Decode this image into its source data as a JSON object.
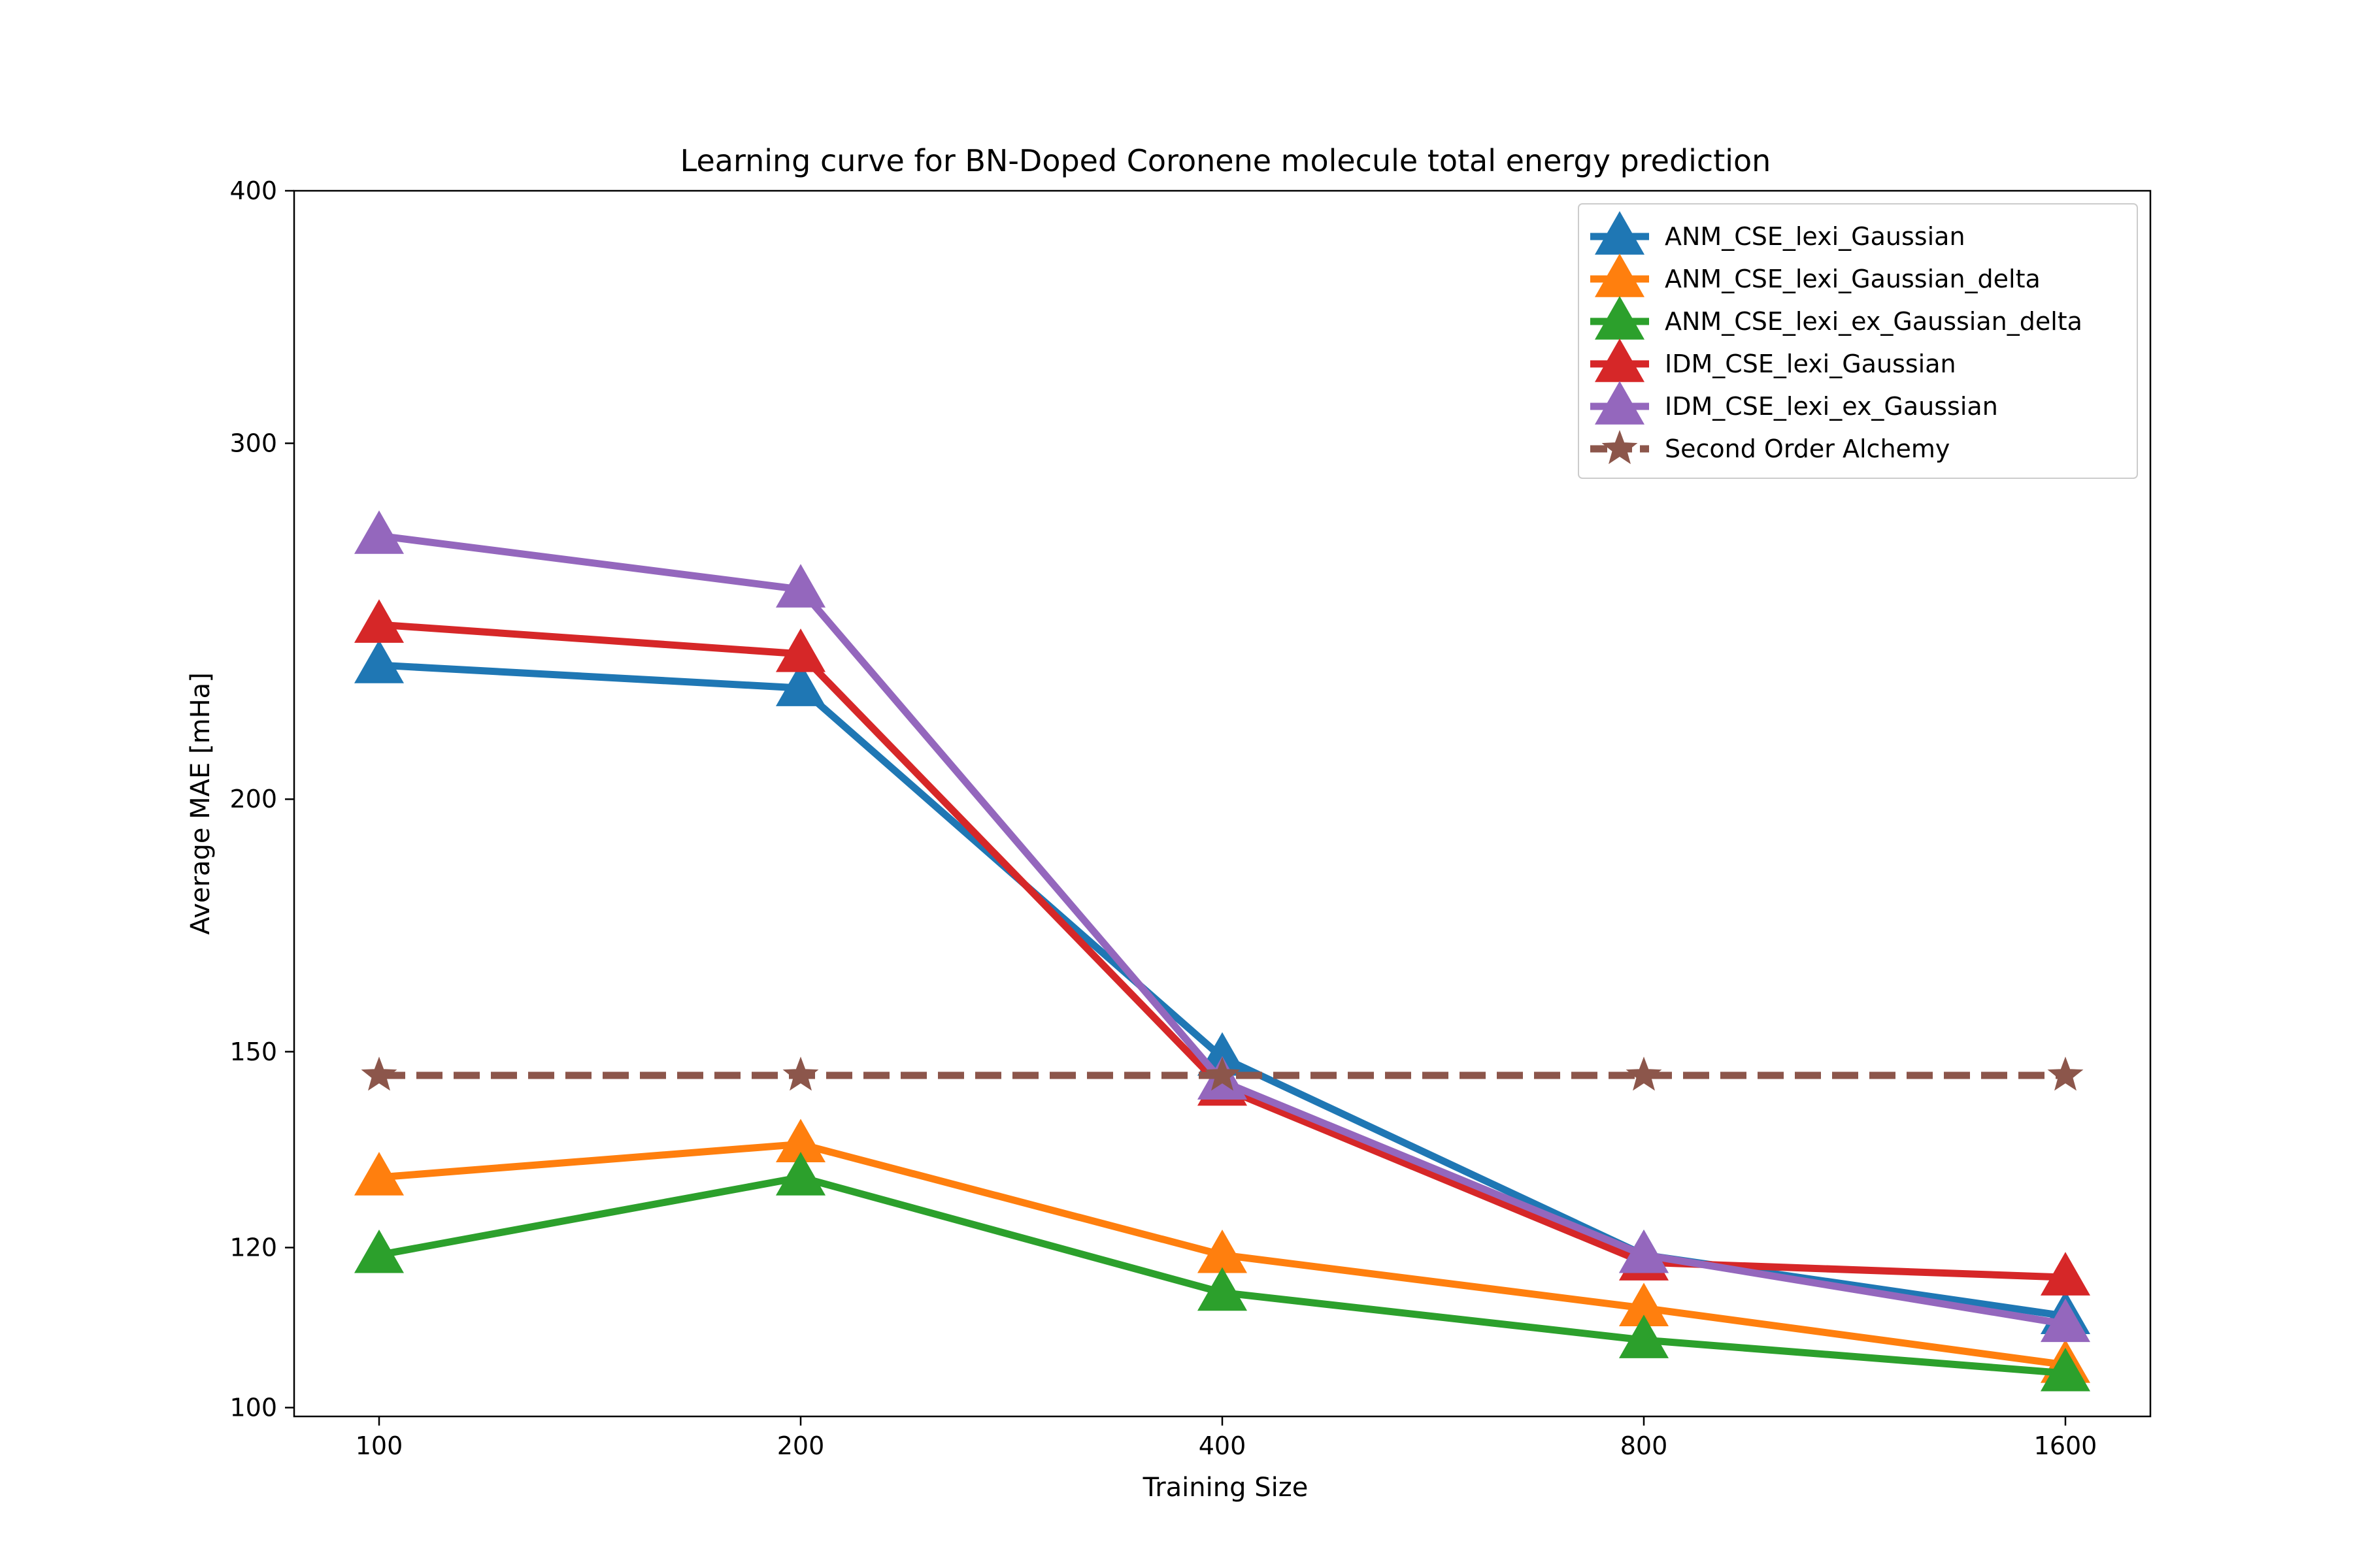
{
  "chart_data": {
    "type": "line",
    "title": "Learning curve for BN-Doped Coronene molecule total energy prediction",
    "xlabel": "Training Size",
    "ylabel": "Average MAE [mHa]",
    "x_scale": "log",
    "y_scale": "log",
    "x": [
      100,
      200,
      400,
      800,
      1600
    ],
    "x_tick_labels": [
      "100",
      "200",
      "400",
      "800",
      "1600"
    ],
    "y_ticks": [
      100,
      120,
      150,
      200,
      300,
      400
    ],
    "y_tick_labels": [
      "100",
      "120",
      "150",
      "200",
      "300",
      "400"
    ],
    "ylim": [
      99,
      400
    ],
    "legend_position": "top-right",
    "grid": false,
    "series": [
      {
        "name": "ANM_CSE_lexi_Gaussian",
        "color": "#1f77b4",
        "marker": "triangle-up",
        "dashed": false,
        "values": [
          233,
          227,
          149,
          119,
          111
        ]
      },
      {
        "name": "ANM_CSE_lexi_Gaussian_delta",
        "color": "#ff7f0e",
        "marker": "triangle-up",
        "dashed": false,
        "values": [
          130,
          135,
          119,
          112,
          105
        ]
      },
      {
        "name": "ANM_CSE_lexi_ex_Gaussian_delta",
        "color": "#2ca02c",
        "marker": "triangle-up",
        "dashed": false,
        "values": [
          119,
          130,
          114,
          108,
          104
        ]
      },
      {
        "name": "IDM_CSE_lexi_Gaussian",
        "color": "#d62728",
        "marker": "triangle-up",
        "dashed": false,
        "values": [
          244,
          236,
          144,
          118,
          116
        ]
      },
      {
        "name": "IDM_CSE_lexi_ex_Gaussian",
        "color": "#9467bd",
        "marker": "triangle-up",
        "dashed": false,
        "values": [
          270,
          254,
          145,
          119,
          110
        ]
      },
      {
        "name": "Second Order Alchemy",
        "color": "#8c564b",
        "marker": "star",
        "dashed": true,
        "values": [
          146,
          146,
          146,
          146,
          146
        ]
      }
    ]
  }
}
